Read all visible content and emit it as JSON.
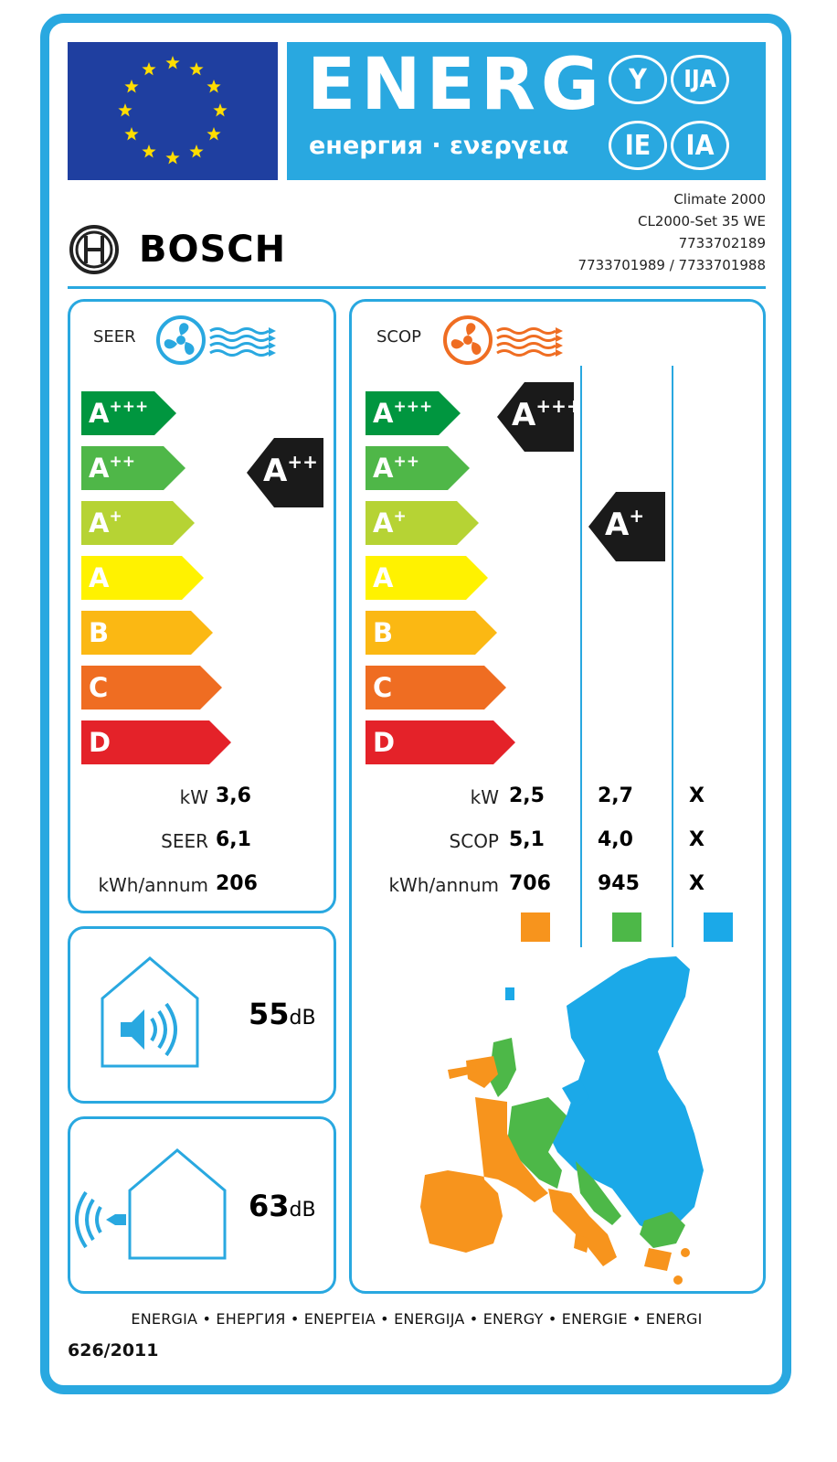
{
  "header": {
    "energ": "ENERG",
    "subtitle": "енергия · ενεργεια",
    "suffixes": [
      "Y",
      "IJA",
      "IE",
      "IA"
    ]
  },
  "supplier": {
    "brand": "BOSCH",
    "model_lines": [
      "Climate 2000",
      "CL2000-Set 35 WE",
      "7733702189",
      "7733701989 / 7733701988"
    ]
  },
  "efficiency_classes": [
    "A+++",
    "A++",
    "A+",
    "A",
    "B",
    "C",
    "D"
  ],
  "class_colors": [
    "#00963f",
    "#4fb748",
    "#b6d334",
    "#fff200",
    "#fbb813",
    "#ef6d22",
    "#e42229"
  ],
  "cooling": {
    "title": "SEER",
    "class": "A++",
    "rows": [
      {
        "label": "kW",
        "value": "3,6"
      },
      {
        "label": "SEER",
        "value": "6,1"
      },
      {
        "label": "kWh/annum",
        "value": "206"
      }
    ]
  },
  "heating": {
    "title": "SCOP",
    "classes": [
      "A+++",
      "A+"
    ],
    "row_labels": [
      "kW",
      "SCOP",
      "kWh/annum"
    ],
    "columns": [
      {
        "values": [
          "2,5",
          "5,1",
          "706"
        ],
        "color": "#f7941d"
      },
      {
        "values": [
          "2,7",
          "4,0",
          "945"
        ],
        "color": "#4db848"
      },
      {
        "values": [
          "X",
          "X",
          "X"
        ],
        "color": "#1ba9e8"
      }
    ]
  },
  "noise": {
    "indoor": {
      "value": "55",
      "unit": "dB"
    },
    "outdoor": {
      "value": "63",
      "unit": "dB"
    }
  },
  "footer": {
    "languages": "ENERGIA • ЕНЕРГИЯ • ΕΝΕΡΓΕΙΑ • ENERGIJA • ENERGY • ENERGIE • ENERGI",
    "regulation": "626/2011"
  }
}
